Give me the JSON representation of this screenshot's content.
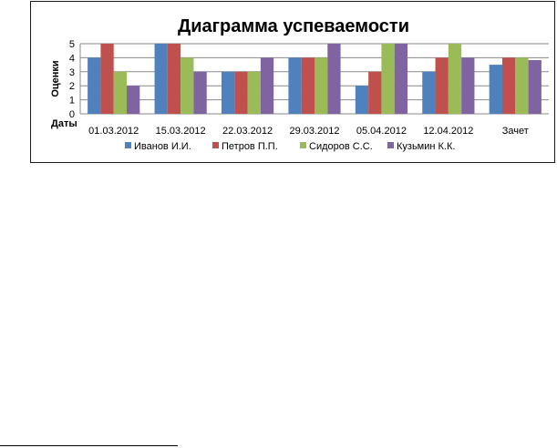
{
  "chart_data": {
    "type": "bar",
    "title": "Диаграмма успеваемости",
    "ylabel": "Оценки",
    "xlabel": "Даты",
    "ylim": [
      0,
      5
    ],
    "yticks": [
      0,
      1,
      2,
      3,
      4,
      5
    ],
    "grid": true,
    "legend_position": "bottom",
    "categories": [
      "01.03.2012",
      "15.03.2012",
      "22.03.2012",
      "29.03.2012",
      "05.04.2012",
      "12.04.2012",
      "Зачет"
    ],
    "series": [
      {
        "name": "Иванов И.И.",
        "color": "#4F81BD",
        "values": [
          4,
          5,
          3,
          4,
          2,
          3,
          3.5
        ]
      },
      {
        "name": "Петров П.П.",
        "color": "#C0504D",
        "values": [
          5,
          5,
          3,
          4,
          3,
          4,
          4
        ]
      },
      {
        "name": "Сидоров С.С.",
        "color": "#9BBB59",
        "values": [
          3,
          4,
          3,
          4,
          5,
          5,
          4
        ]
      },
      {
        "name": "Кузьмин К.К.",
        "color": "#8064A2",
        "values": [
          2,
          3,
          4,
          5,
          5,
          4,
          3.83
        ]
      }
    ]
  }
}
